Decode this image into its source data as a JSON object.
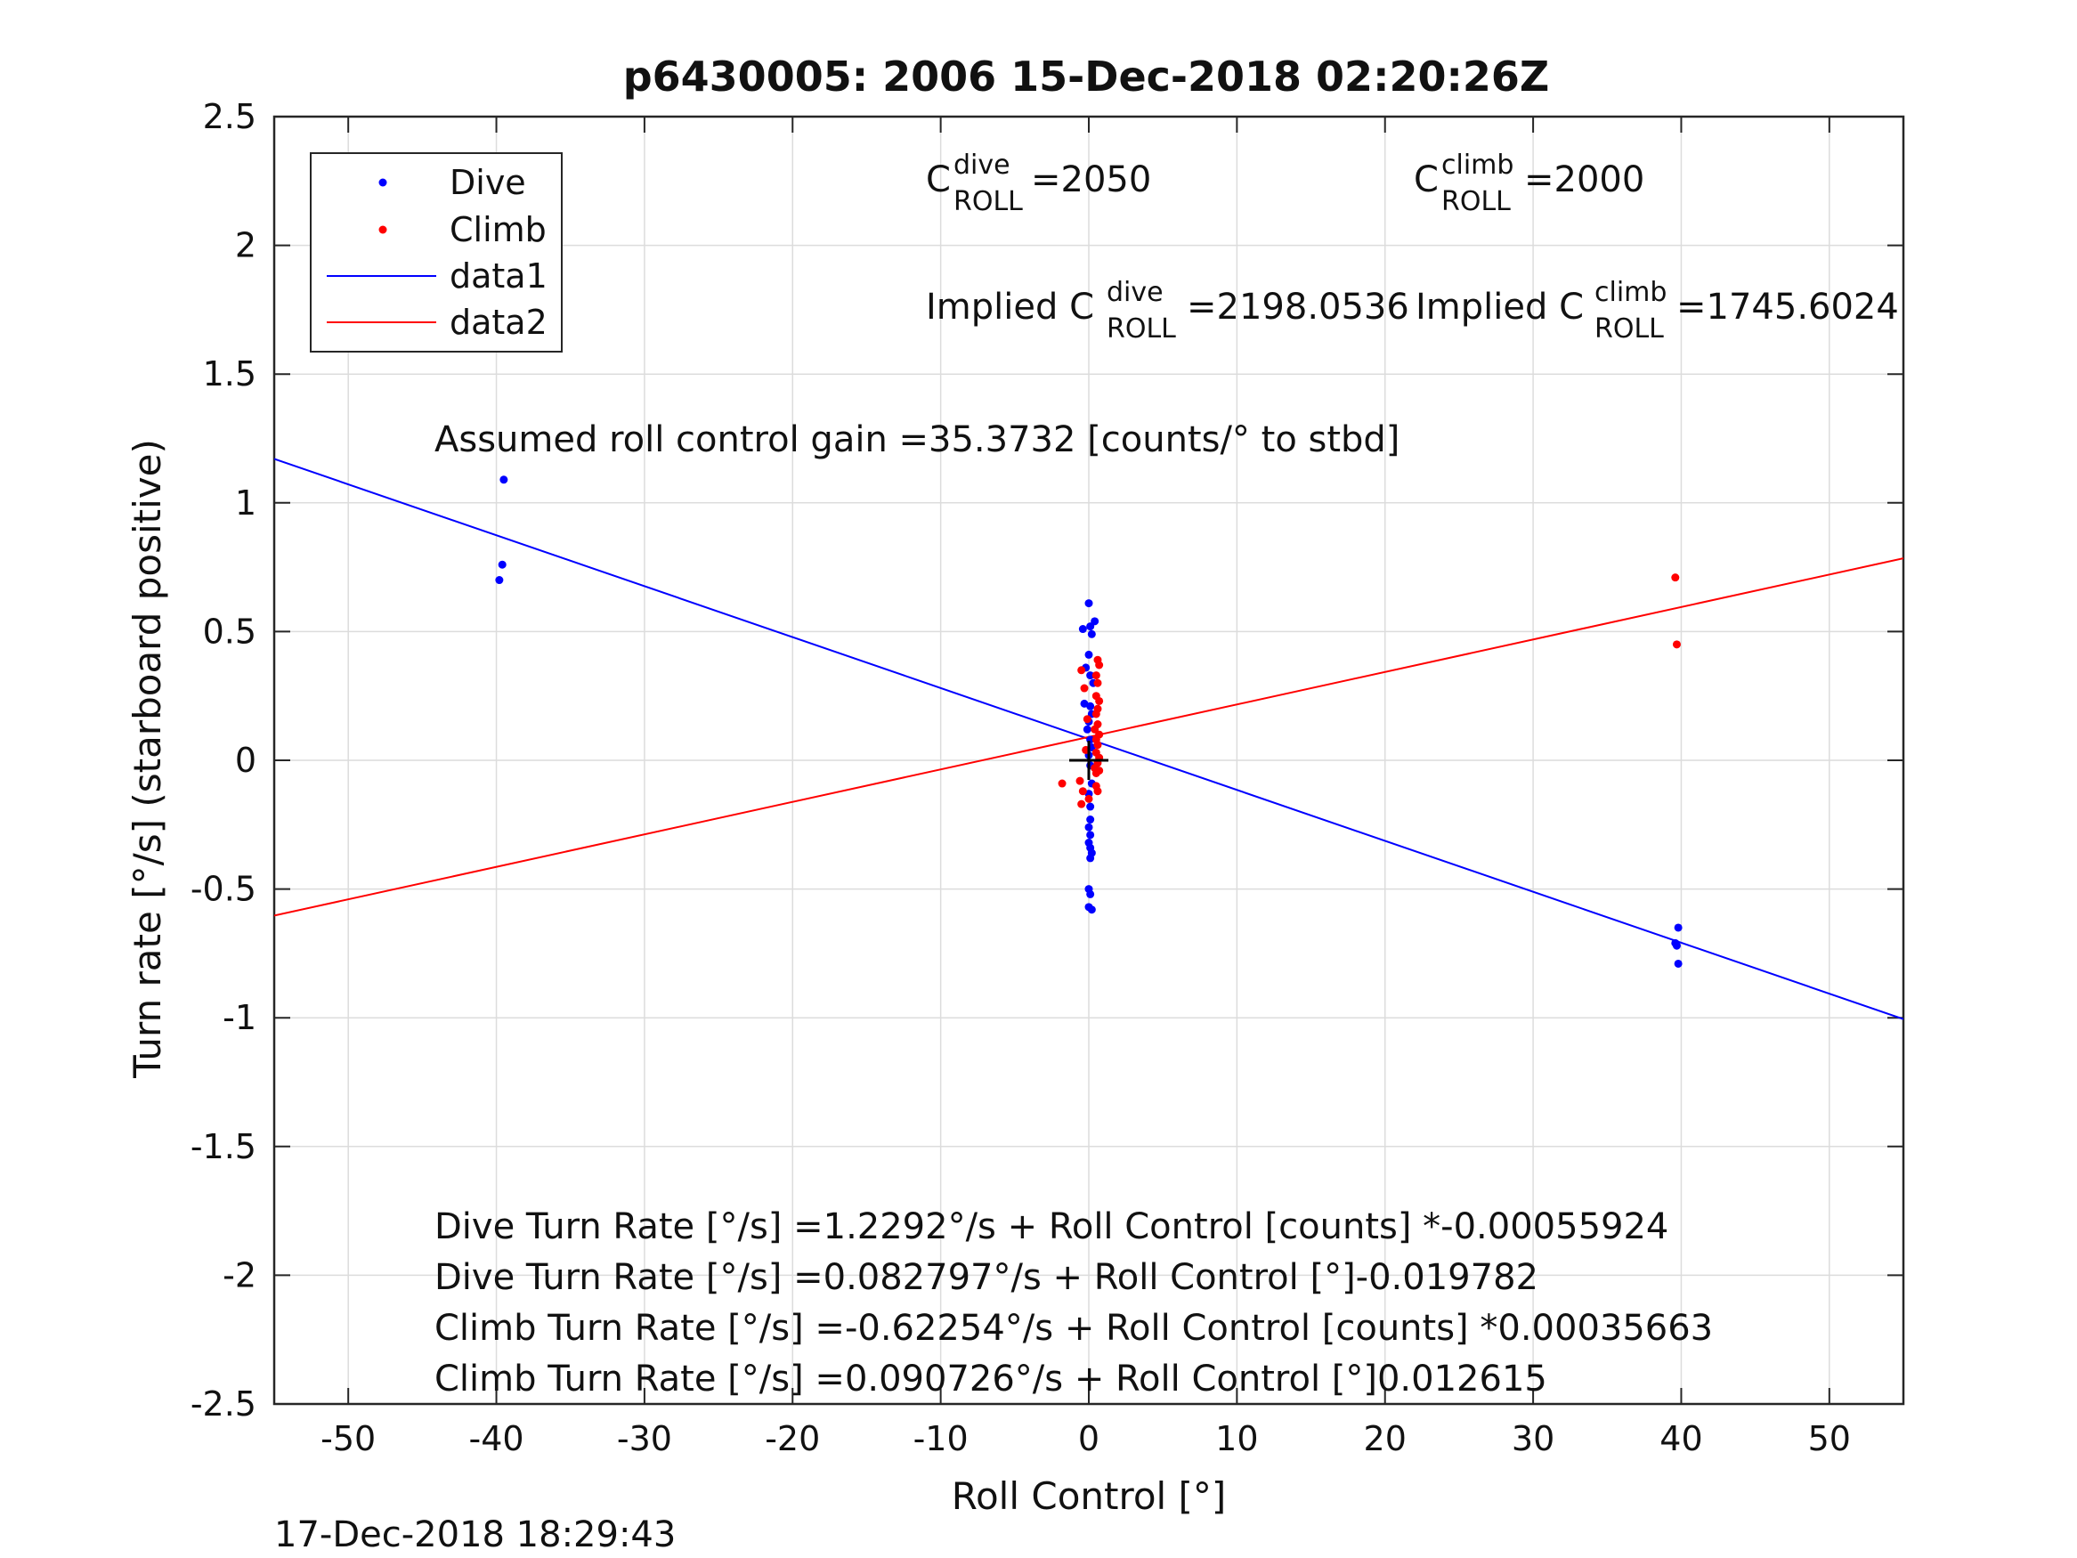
{
  "chart_data": {
    "type": "scatter",
    "title": "p6430005:  2006 15-Dec-2018 02:20:26Z",
    "xlabel": "Roll Control [°]",
    "ylabel": "Turn rate [°/s] (starboard positive)",
    "xlim": [
      -55,
      55
    ],
    "ylim": [
      -2.5,
      2.5
    ],
    "xticks": [
      -50,
      -40,
      -30,
      -20,
      -10,
      0,
      10,
      20,
      30,
      40,
      50
    ],
    "yticks": [
      -2.5,
      -2,
      -1.5,
      -1,
      -0.5,
      0,
      0.5,
      1,
      1.5,
      2,
      2.5
    ],
    "grid": true,
    "legend_position": "top-left",
    "legend": [
      "Dive",
      "Climb",
      "data1",
      "data2"
    ],
    "series": [
      {
        "name": "Dive",
        "kind": "points",
        "color": "#0000ff",
        "points": [
          [
            -39.5,
            1.09
          ],
          [
            -39.6,
            0.76
          ],
          [
            -39.8,
            0.7
          ],
          [
            0.0,
            0.61
          ],
          [
            -0.4,
            0.51
          ],
          [
            0.1,
            0.52
          ],
          [
            0.4,
            0.54
          ],
          [
            0.2,
            0.49
          ],
          [
            0.0,
            0.41
          ],
          [
            -0.2,
            0.36
          ],
          [
            0.1,
            0.33
          ],
          [
            0.3,
            0.3
          ],
          [
            -0.3,
            0.22
          ],
          [
            0.1,
            0.21
          ],
          [
            0.2,
            0.18
          ],
          [
            0.0,
            0.15
          ],
          [
            -0.1,
            0.12
          ],
          [
            0.1,
            0.08
          ],
          [
            0.2,
            0.05
          ],
          [
            0.0,
            0.02
          ],
          [
            0.1,
            -0.02
          ],
          [
            0.2,
            -0.09
          ],
          [
            0.0,
            -0.13
          ],
          [
            0.1,
            -0.18
          ],
          [
            0.1,
            -0.23
          ],
          [
            0.0,
            -0.26
          ],
          [
            0.1,
            -0.29
          ],
          [
            0.0,
            -0.32
          ],
          [
            0.1,
            -0.34
          ],
          [
            0.2,
            -0.36
          ],
          [
            0.1,
            -0.38
          ],
          [
            0.0,
            -0.5
          ],
          [
            0.1,
            -0.52
          ],
          [
            0.0,
            -0.57
          ],
          [
            0.2,
            -0.58
          ],
          [
            39.8,
            -0.65
          ],
          [
            39.6,
            -0.71
          ],
          [
            39.7,
            -0.72
          ],
          [
            39.8,
            -0.79
          ]
        ]
      },
      {
        "name": "Climb",
        "kind": "points",
        "color": "#ff0000",
        "points": [
          [
            39.6,
            0.71
          ],
          [
            39.7,
            0.45
          ],
          [
            0.6,
            0.39
          ],
          [
            0.7,
            0.37
          ],
          [
            -0.5,
            0.35
          ],
          [
            0.5,
            0.33
          ],
          [
            0.6,
            0.3
          ],
          [
            -0.3,
            0.28
          ],
          [
            0.5,
            0.25
          ],
          [
            0.7,
            0.23
          ],
          [
            0.6,
            0.2
          ],
          [
            0.5,
            0.18
          ],
          [
            -0.1,
            0.16
          ],
          [
            0.6,
            0.14
          ],
          [
            0.4,
            0.12
          ],
          [
            0.7,
            0.1
          ],
          [
            0.5,
            0.08
          ],
          [
            0.6,
            0.06
          ],
          [
            -0.2,
            0.04
          ],
          [
            0.5,
            0.03
          ],
          [
            0.7,
            0.01
          ],
          [
            0.6,
            -0.01
          ],
          [
            0.4,
            -0.03
          ],
          [
            0.5,
            -0.05
          ],
          [
            0.7,
            -0.04
          ],
          [
            -0.6,
            -0.08
          ],
          [
            0.5,
            -0.1
          ],
          [
            0.6,
            -0.12
          ],
          [
            -1.8,
            -0.09
          ],
          [
            -0.4,
            -0.12
          ],
          [
            0.0,
            -0.15
          ],
          [
            -0.5,
            -0.17
          ]
        ]
      },
      {
        "name": "data1",
        "kind": "line",
        "color": "#0000ff",
        "slope": -0.019782,
        "intercept": 0.082797
      },
      {
        "name": "data2",
        "kind": "line",
        "color": "#ff0000",
        "slope": 0.012615,
        "intercept": 0.090726
      }
    ],
    "marker": {
      "x": 0,
      "y": 0,
      "symbol": "+"
    },
    "annotations": {
      "c_dive_label": "C",
      "c_dive_sup": "dive",
      "c_dive_sub": "ROLL",
      "c_dive_value": " =2050",
      "c_climb_label": "C",
      "c_climb_sup": "climb",
      "c_climb_sub": "ROLL",
      "c_climb_value": " =2000",
      "implied_dive_label": "Implied C",
      "implied_dive_sup": "dive",
      "implied_dive_sub": "ROLL",
      "implied_dive_value": " =2198.0536",
      "implied_climb_label": "Implied C",
      "implied_climb_sup": "climb",
      "implied_climb_sub": "ROLL",
      "implied_climb_value": " =1745.6024",
      "gain": "Assumed roll control gain =35.3732 [counts/° to stbd]",
      "eq1": "Dive Turn Rate [°/s] =1.2292°/s + Roll Control [counts] *-0.00055924",
      "eq2": "Dive Turn Rate [°/s] =0.082797°/s + Roll Control [°]-0.019782",
      "eq3": "Climb Turn Rate [°/s] =-0.62254°/s + Roll Control [counts] *0.00035663",
      "eq4": "Climb Turn Rate [°/s] =0.090726°/s + Roll Control [°]0.012615"
    },
    "timestamp": "17-Dec-2018 18:29:43"
  }
}
